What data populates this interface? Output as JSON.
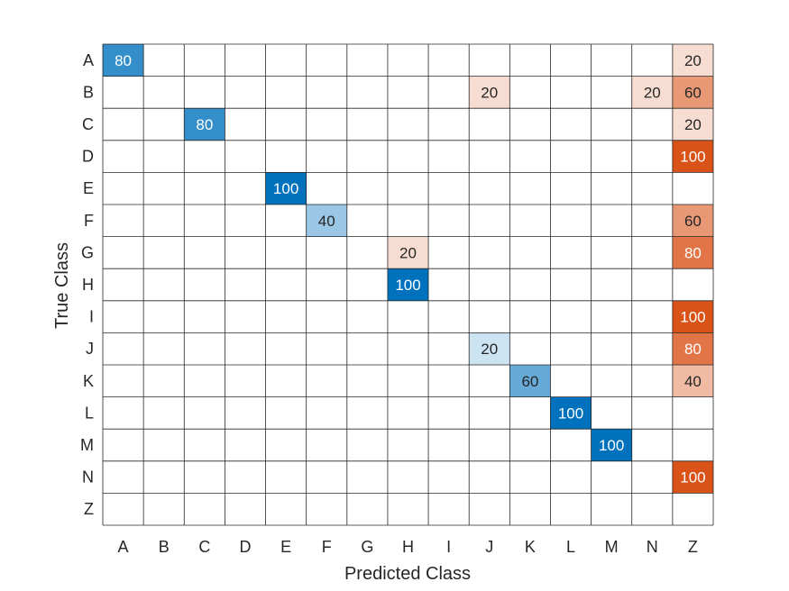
{
  "chart_data": {
    "type": "heatmap",
    "xlabel": "Predicted Class",
    "ylabel": "True Class",
    "x_categories": [
      "A",
      "B",
      "C",
      "D",
      "E",
      "F",
      "G",
      "H",
      "I",
      "J",
      "K",
      "L",
      "M",
      "N",
      "Z"
    ],
    "y_categories": [
      "A",
      "B",
      "C",
      "D",
      "E",
      "F",
      "G",
      "H",
      "I",
      "J",
      "K",
      "L",
      "M",
      "N",
      "Z"
    ],
    "cells": [
      {
        "true": "A",
        "pred": "A",
        "value": 80
      },
      {
        "true": "A",
        "pred": "Z",
        "value": 20
      },
      {
        "true": "B",
        "pred": "J",
        "value": 20
      },
      {
        "true": "B",
        "pred": "N",
        "value": 20
      },
      {
        "true": "B",
        "pred": "Z",
        "value": 60
      },
      {
        "true": "C",
        "pred": "C",
        "value": 80
      },
      {
        "true": "C",
        "pred": "Z",
        "value": 20
      },
      {
        "true": "D",
        "pred": "Z",
        "value": 100
      },
      {
        "true": "E",
        "pred": "E",
        "value": 100
      },
      {
        "true": "F",
        "pred": "F",
        "value": 40
      },
      {
        "true": "F",
        "pred": "Z",
        "value": 60
      },
      {
        "true": "G",
        "pred": "H",
        "value": 20
      },
      {
        "true": "G",
        "pred": "Z",
        "value": 80
      },
      {
        "true": "H",
        "pred": "H",
        "value": 100
      },
      {
        "true": "I",
        "pred": "Z",
        "value": 100
      },
      {
        "true": "J",
        "pred": "J",
        "value": 20
      },
      {
        "true": "J",
        "pred": "Z",
        "value": 80
      },
      {
        "true": "K",
        "pred": "K",
        "value": 60
      },
      {
        "true": "K",
        "pred": "Z",
        "value": 40
      },
      {
        "true": "L",
        "pred": "L",
        "value": 100
      },
      {
        "true": "M",
        "pred": "M",
        "value": 100
      },
      {
        "true": "N",
        "pred": "Z",
        "value": 100
      }
    ],
    "value_range": [
      0,
      100
    ],
    "colors": {
      "correct_max": "#0072BD",
      "incorrect_max": "#D95319",
      "empty": "#FFFFFF",
      "grid": "#262626",
      "text_dark": "#262626",
      "text_light": "#FFFFFF"
    },
    "grid": true,
    "legend": "none"
  }
}
